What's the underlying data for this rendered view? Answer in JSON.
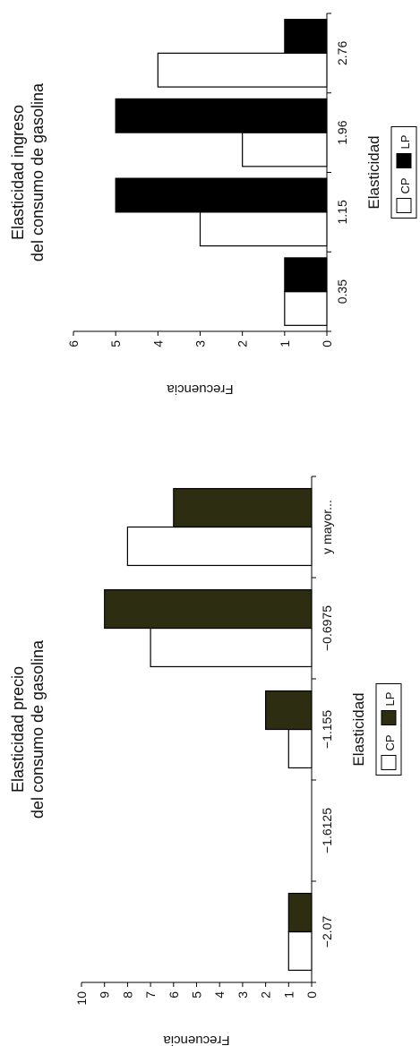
{
  "chart_data": [
    {
      "type": "bar",
      "title": "Elasticidad ingreso\ndel consumo de gasolina",
      "xlabel": "Elasticidad",
      "ylabel": "Frecuencia",
      "categories": [
        "0.35",
        "1.15",
        "1.96",
        "2.76"
      ],
      "ylim": [
        0,
        6
      ],
      "yticks": [
        0,
        1,
        2,
        3,
        4,
        5,
        6
      ],
      "grid": false,
      "legend": "bottom",
      "series": [
        {
          "name": "CP",
          "values": [
            1,
            3,
            2,
            4
          ],
          "color": "#ffffff"
        },
        {
          "name": "LP",
          "values": [
            1,
            5,
            5,
            1
          ],
          "color": "#000000"
        }
      ]
    },
    {
      "type": "bar",
      "title": "Elasticidad precio\ndel consumo de gasolina",
      "xlabel": "Elasticidad",
      "ylabel": "Frecuencia",
      "categories": [
        "−2.07",
        "−1.6125",
        "−1.155",
        "−0.6975",
        "y mayor..."
      ],
      "ylim": [
        0,
        10
      ],
      "yticks": [
        0,
        1,
        2,
        3,
        4,
        5,
        6,
        7,
        8,
        9,
        10
      ],
      "grid": false,
      "legend": "bottom",
      "series": [
        {
          "name": "CP",
          "values": [
            1,
            0,
            1,
            7,
            8
          ],
          "color": "#ffffff"
        },
        {
          "name": "LP",
          "values": [
            1,
            0,
            2,
            9,
            6
          ],
          "color": "#2d2d12"
        }
      ]
    }
  ]
}
